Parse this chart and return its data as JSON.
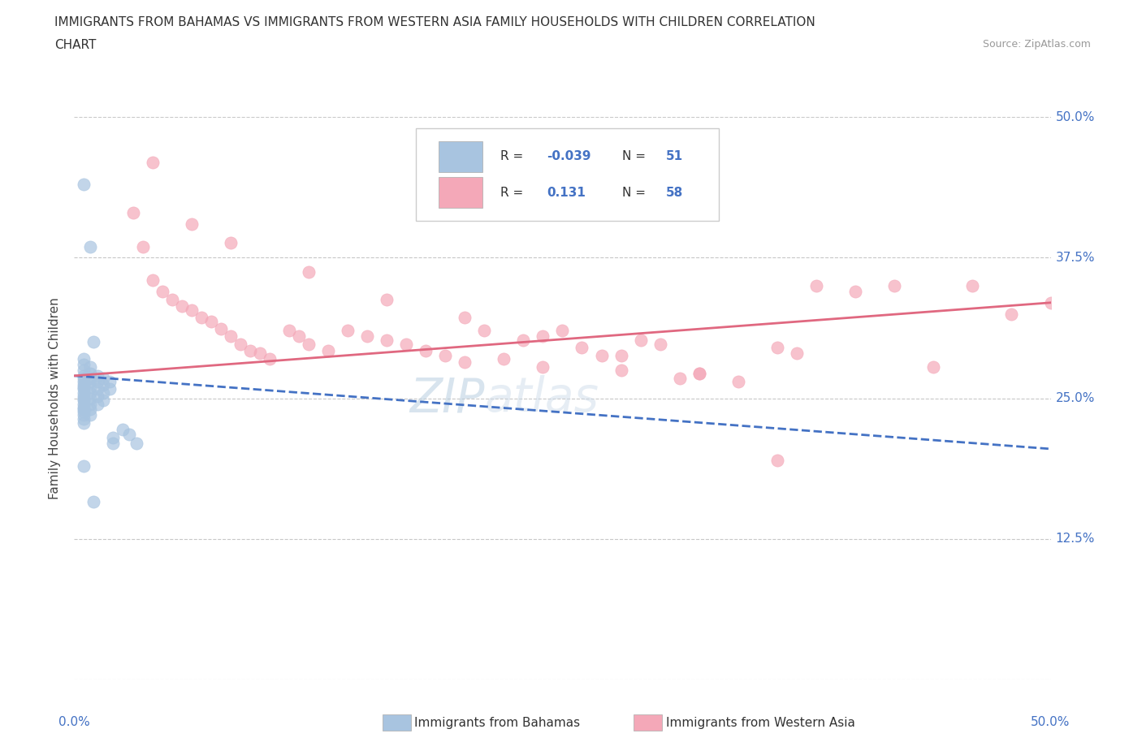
{
  "title_line1": "IMMIGRANTS FROM BAHAMAS VS IMMIGRANTS FROM WESTERN ASIA FAMILY HOUSEHOLDS WITH CHILDREN CORRELATION",
  "title_line2": "CHART",
  "source_text": "Source: ZipAtlas.com",
  "watermark": "ZIPatlas",
  "ylabel": "Family Households with Children",
  "bahamas_R": -0.039,
  "bahamas_N": 51,
  "western_asia_R": 0.131,
  "western_asia_N": 58,
  "bahamas_color": "#a8c4e0",
  "western_asia_color": "#f4a8b8",
  "bahamas_line_color": "#4472c4",
  "western_asia_line_color": "#e06880",
  "background_color": "#ffffff",
  "xlim": [
    0.0,
    0.5
  ],
  "ylim": [
    0.0,
    0.5
  ],
  "grid_color": "#c8c8c8",
  "right_label_color": "#4472c4",
  "bahamas_x": [
    0.005,
    0.005,
    0.005,
    0.005,
    0.005,
    0.005,
    0.005,
    0.005,
    0.005,
    0.005,
    0.005,
    0.005,
    0.005,
    0.005,
    0.005,
    0.005,
    0.005,
    0.005,
    0.005,
    0.005,
    0.008,
    0.008,
    0.008,
    0.008,
    0.008,
    0.008,
    0.008,
    0.008,
    0.008,
    0.008,
    0.012,
    0.012,
    0.012,
    0.012,
    0.012,
    0.015,
    0.015,
    0.015,
    0.015,
    0.018,
    0.018,
    0.02,
    0.02,
    0.025,
    0.028,
    0.032,
    0.005,
    0.008,
    0.01,
    0.005,
    0.01
  ],
  "bahamas_y": [
    0.285,
    0.28,
    0.275,
    0.27,
    0.268,
    0.265,
    0.262,
    0.26,
    0.258,
    0.255,
    0.252,
    0.25,
    0.248,
    0.245,
    0.242,
    0.24,
    0.238,
    0.235,
    0.232,
    0.228,
    0.278,
    0.272,
    0.268,
    0.265,
    0.26,
    0.255,
    0.25,
    0.245,
    0.24,
    0.235,
    0.27,
    0.265,
    0.258,
    0.252,
    0.245,
    0.268,
    0.262,
    0.255,
    0.248,
    0.265,
    0.258,
    0.215,
    0.21,
    0.222,
    0.218,
    0.21,
    0.44,
    0.385,
    0.3,
    0.19,
    0.158
  ],
  "western_asia_x": [
    0.03,
    0.035,
    0.04,
    0.045,
    0.05,
    0.055,
    0.06,
    0.065,
    0.07,
    0.075,
    0.08,
    0.085,
    0.09,
    0.095,
    0.1,
    0.11,
    0.115,
    0.12,
    0.13,
    0.14,
    0.15,
    0.16,
    0.17,
    0.18,
    0.19,
    0.2,
    0.21,
    0.22,
    0.23,
    0.24,
    0.25,
    0.26,
    0.27,
    0.28,
    0.29,
    0.3,
    0.31,
    0.32,
    0.34,
    0.36,
    0.37,
    0.38,
    0.4,
    0.42,
    0.44,
    0.46,
    0.48,
    0.5,
    0.04,
    0.06,
    0.08,
    0.12,
    0.16,
    0.2,
    0.24,
    0.28,
    0.32,
    0.36
  ],
  "western_asia_y": [
    0.415,
    0.385,
    0.355,
    0.345,
    0.338,
    0.332,
    0.328,
    0.322,
    0.318,
    0.312,
    0.305,
    0.298,
    0.292,
    0.29,
    0.285,
    0.31,
    0.305,
    0.298,
    0.292,
    0.31,
    0.305,
    0.302,
    0.298,
    0.292,
    0.288,
    0.282,
    0.31,
    0.285,
    0.302,
    0.278,
    0.31,
    0.295,
    0.288,
    0.275,
    0.302,
    0.298,
    0.268,
    0.272,
    0.265,
    0.295,
    0.29,
    0.35,
    0.345,
    0.35,
    0.278,
    0.35,
    0.325,
    0.335,
    0.46,
    0.405,
    0.388,
    0.362,
    0.338,
    0.322,
    0.305,
    0.288,
    0.272,
    0.195
  ],
  "bah_trend_x0": 0.0,
  "bah_trend_y0": 0.27,
  "bah_trend_x1": 0.5,
  "bah_trend_y1": 0.205,
  "wa_trend_x0": 0.0,
  "wa_trend_y0": 0.27,
  "wa_trend_x1": 0.5,
  "wa_trend_y1": 0.335
}
